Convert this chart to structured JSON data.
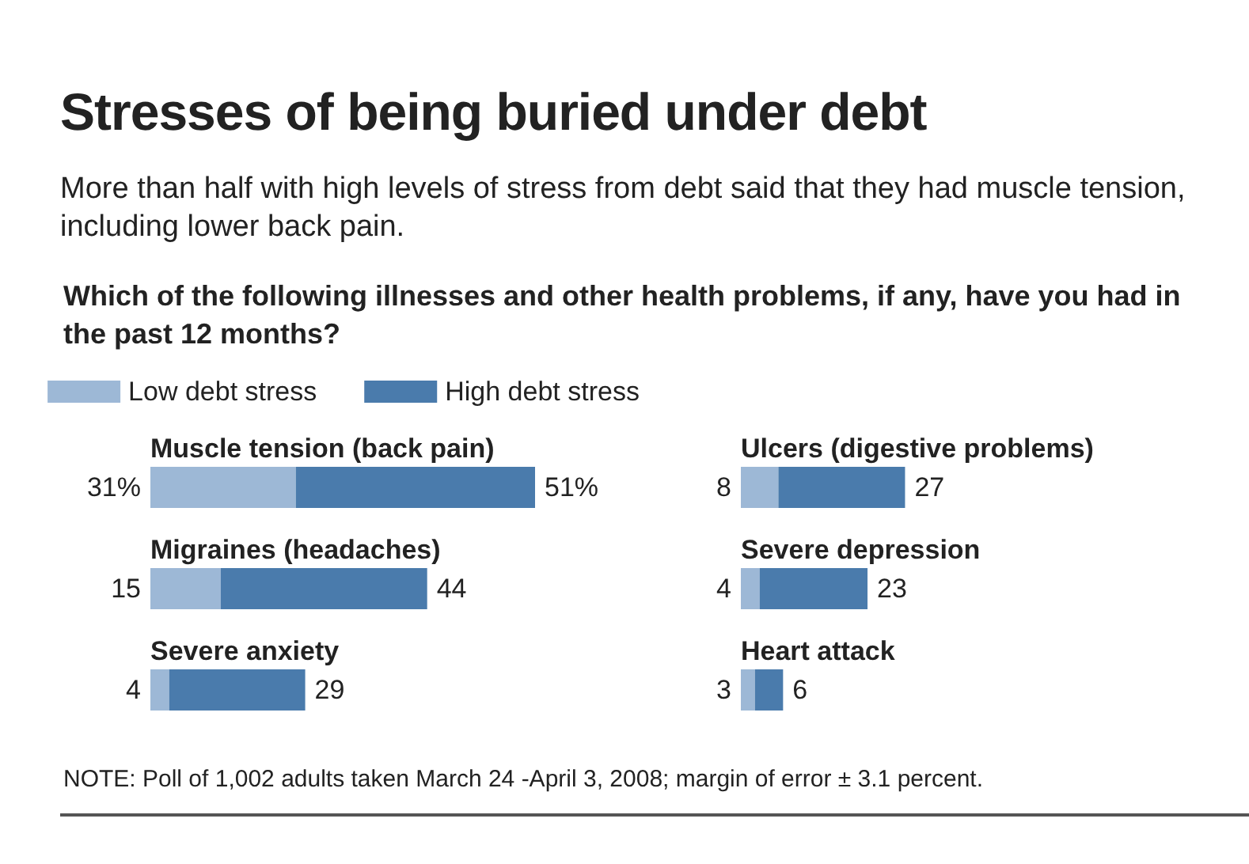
{
  "chart_data": [
    {
      "type": "bar",
      "orientation": "horizontal",
      "stacked": true,
      "title": "Stresses of being buried under debt",
      "subtitle": "More than half with high levels of stress from debt said that they had muscle tension, including lower back pain.",
      "annotations": [
        "Which of the following illnesses and other health problems, if any, have you had in the past 12 months?",
        "NOTE: Poll of 1,002 adults taken March 24 -April 3, 2008; margin of error ± 3.1 percent."
      ],
      "categories": [
        "Muscle tension (back pain)",
        "Migraines (headaches)",
        "Severe anxiety"
      ],
      "series": [
        {
          "name": "Low debt stress",
          "color": "#9db8d6",
          "values": [
            31,
            15,
            4
          ],
          "value_labels": [
            "31%",
            "15",
            "4"
          ]
        },
        {
          "name": "High debt stress",
          "color": "#4a7bac",
          "values": [
            51,
            44,
            29
          ],
          "value_labels": [
            "51%",
            "44",
            "29"
          ]
        }
      ],
      "legend": "top",
      "tick_labels": "y"
    },
    {
      "type": "bar",
      "orientation": "horizontal",
      "stacked": true,
      "categories": [
        "Ulcers (digestive problems)",
        "Severe depression",
        "Heart attack"
      ],
      "series": [
        {
          "color": "#9db8d6",
          "values": [
            8,
            4,
            3
          ],
          "value_labels": [
            "8",
            "4",
            "3"
          ]
        },
        {
          "color": "#4a7bac",
          "values": [
            27,
            23,
            6
          ],
          "value_labels": [
            "27",
            "23",
            "6"
          ]
        }
      ],
      "tick_labels": "y"
    }
  ]
}
